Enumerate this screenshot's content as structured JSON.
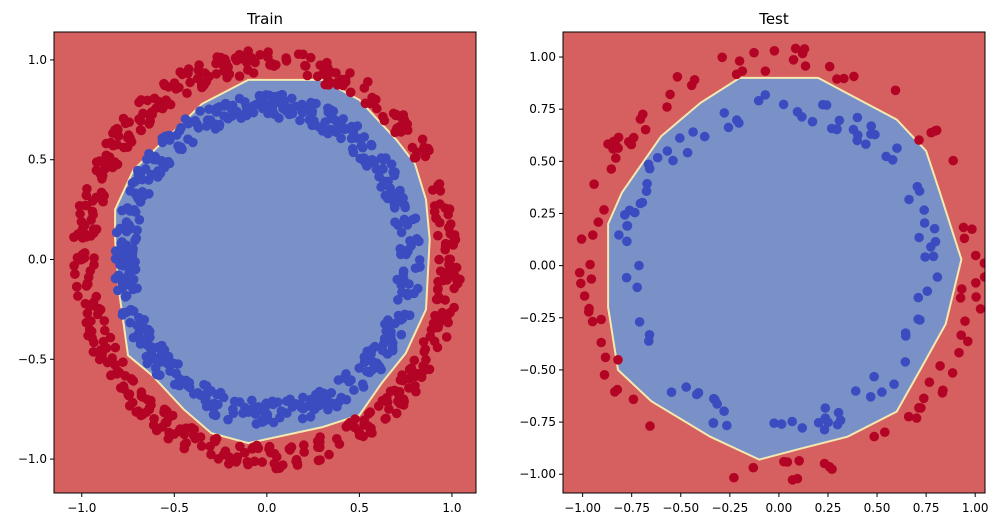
{
  "chart_data": [
    {
      "type": "scatter",
      "title": "Train",
      "xlabel": "",
      "ylabel": "",
      "xlim": [
        -1.15,
        1.13
      ],
      "ylim": [
        -1.17,
        1.14
      ],
      "xticks": [
        -1.0,
        -0.5,
        0.0,
        0.5,
        1.0
      ],
      "xtick_labels": [
        "−1.0",
        "−0.5",
        "0.0",
        "0.5",
        "1.0"
      ],
      "yticks": [
        -1.0,
        -0.5,
        0.0,
        0.5,
        1.0
      ],
      "ytick_labels": [
        "−1.0",
        "−0.5",
        "0.0",
        "0.5",
        "1.0"
      ],
      "grid": false,
      "background_color": "#d65f5f",
      "region_color": "#7a91c8",
      "boundary_color": "#f4e9b0",
      "decision_boundary": [
        [
          -0.1,
          0.9
        ],
        [
          0.3,
          0.9
        ],
        [
          0.5,
          0.8
        ],
        [
          0.7,
          0.6
        ],
        [
          0.8,
          0.48
        ],
        [
          0.86,
          0.3
        ],
        [
          0.88,
          0.1
        ],
        [
          0.86,
          -0.25
        ],
        [
          0.75,
          -0.47
        ],
        [
          0.62,
          -0.62
        ],
        [
          0.5,
          -0.78
        ],
        [
          0.3,
          -0.84
        ],
        [
          0.1,
          -0.88
        ],
        [
          -0.1,
          -0.92
        ],
        [
          -0.3,
          -0.87
        ],
        [
          -0.45,
          -0.75
        ],
        [
          -0.62,
          -0.58
        ],
        [
          -0.75,
          -0.48
        ],
        [
          -0.8,
          -0.15
        ],
        [
          -0.82,
          0.1
        ],
        [
          -0.82,
          0.25
        ],
        [
          -0.72,
          0.45
        ],
        [
          -0.55,
          0.6
        ],
        [
          -0.35,
          0.78
        ]
      ],
      "series": [
        {
          "class": 0,
          "color": "#b40426",
          "radius_range": [
            0.93,
            1.05
          ],
          "n_points": 500
        },
        {
          "class": 1,
          "color": "#3b4cc0",
          "radius_range": [
            0.71,
            0.83
          ],
          "n_points": 500
        }
      ]
    },
    {
      "type": "scatter",
      "title": "Test",
      "xlabel": "",
      "ylabel": "",
      "xlim": [
        -1.1,
        1.05
      ],
      "ylim": [
        -1.09,
        1.12
      ],
      "xticks": [
        -1.0,
        -0.75,
        -0.5,
        -0.25,
        0.0,
        0.25,
        0.5,
        0.75,
        1.0
      ],
      "xtick_labels": [
        "−1.00",
        "−0.75",
        "−0.50",
        "−0.25",
        "0.00",
        "0.25",
        "0.50",
        "0.75",
        "1.00"
      ],
      "yticks": [
        -1.0,
        -0.75,
        -0.5,
        -0.25,
        0.0,
        0.25,
        0.5,
        0.75,
        1.0
      ],
      "ytick_labels": [
        "−1.00",
        "−0.75",
        "−0.50",
        "−0.25",
        "0.00",
        "0.25",
        "0.50",
        "0.75",
        "1.00"
      ],
      "grid": false,
      "background_color": "#d65f5f",
      "region_color": "#7a91c8",
      "boundary_color": "#f4e9b0",
      "decision_boundary": [
        [
          -0.2,
          0.9
        ],
        [
          0.2,
          0.9
        ],
        [
          0.4,
          0.8
        ],
        [
          0.6,
          0.7
        ],
        [
          0.75,
          0.55
        ],
        [
          0.82,
          0.35
        ],
        [
          0.93,
          0.03
        ],
        [
          0.85,
          -0.28
        ],
        [
          0.72,
          -0.5
        ],
        [
          0.6,
          -0.7
        ],
        [
          0.35,
          -0.82
        ],
        [
          0.1,
          -0.88
        ],
        [
          -0.1,
          -0.93
        ],
        [
          -0.35,
          -0.82
        ],
        [
          -0.65,
          -0.65
        ],
        [
          -0.82,
          -0.5
        ],
        [
          -0.87,
          -0.2
        ],
        [
          -0.87,
          0.2
        ],
        [
          -0.8,
          0.35
        ],
        [
          -0.6,
          0.62
        ],
        [
          -0.4,
          0.78
        ]
      ],
      "series": [
        {
          "class": 0,
          "color": "#b40426",
          "radius_range": [
            0.93,
            1.05
          ],
          "n_points": 100
        },
        {
          "class": 1,
          "color": "#3b4cc0",
          "radius_range": [
            0.71,
            0.83
          ],
          "n_points": 100
        }
      ]
    }
  ]
}
